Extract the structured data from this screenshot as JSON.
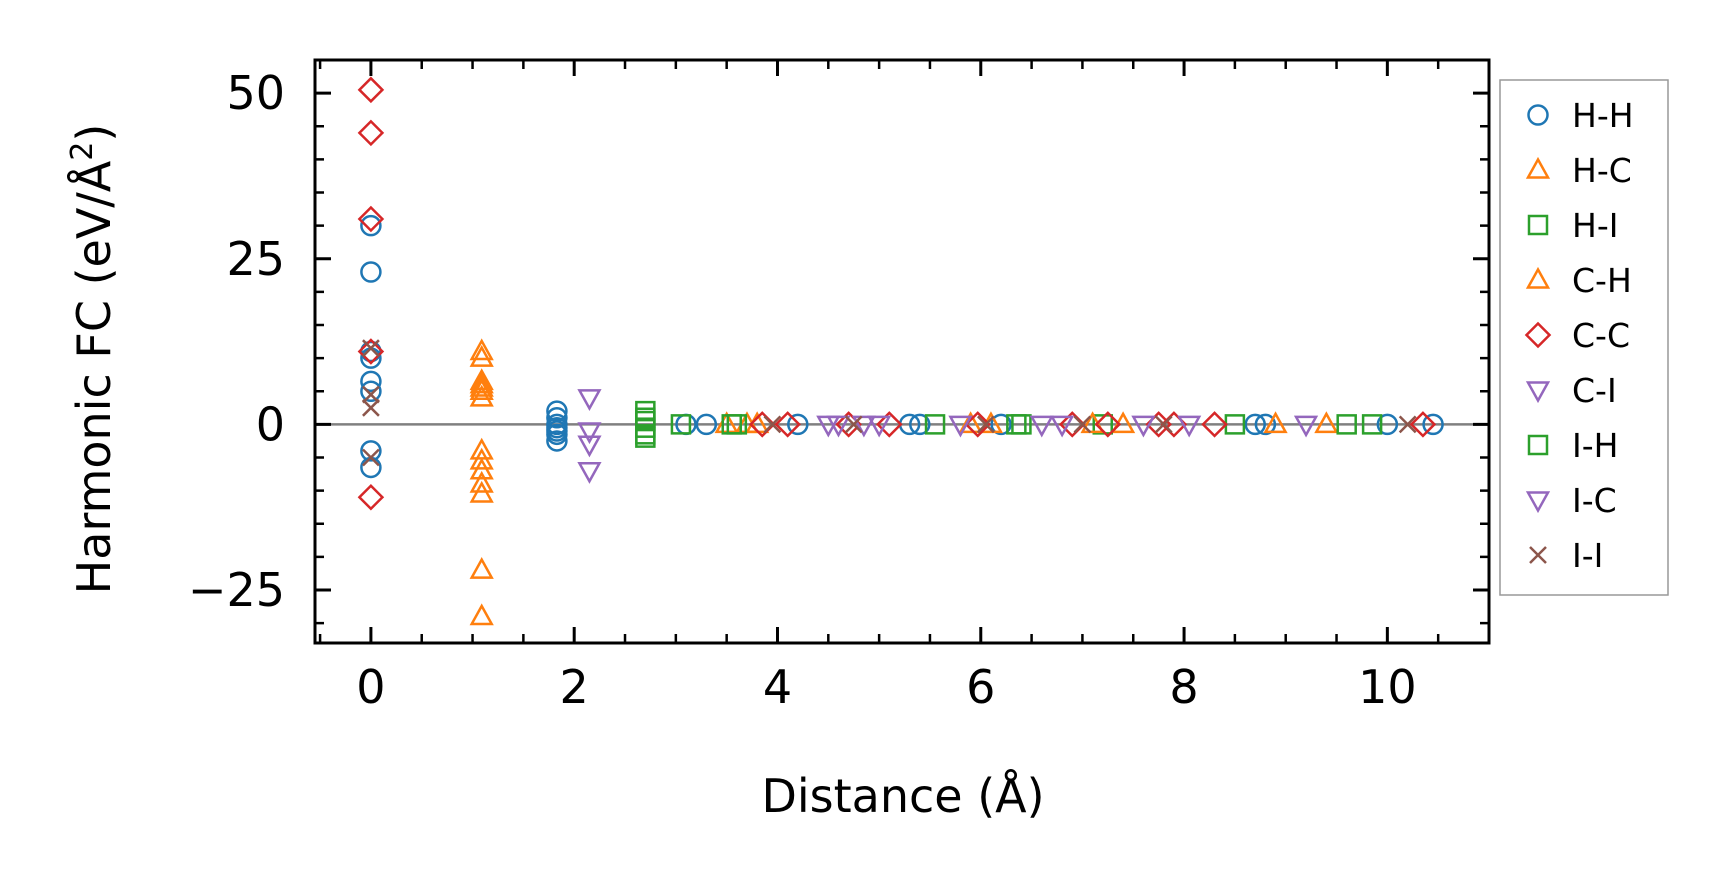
{
  "chart_data": {
    "type": "scatter",
    "title": "",
    "xlabel": "Distance (Å)",
    "ylabel_main": "Harmonic FC (eV/Å",
    "ylabel_sup": "2",
    "ylabel_close": ")",
    "xlim": [
      -0.55,
      11.0
    ],
    "ylim": [
      -33,
      55
    ],
    "xticks": [
      0,
      2,
      4,
      6,
      8,
      10
    ],
    "xtick_labels": [
      "0",
      "2",
      "4",
      "6",
      "8",
      "10"
    ],
    "yticks": [
      -25,
      0,
      25,
      50
    ],
    "ytick_labels": [
      "−25",
      "0",
      "25",
      "50"
    ],
    "zero_line": true,
    "legend_position": "outside-right",
    "series": [
      {
        "name": "H-H",
        "marker": "circle",
        "color": "#1f77b4",
        "x": [
          0,
          0,
          0,
          0,
          0,
          0,
          0,
          0,
          1.83,
          1.83,
          1.83,
          1.83,
          1.83,
          1.83,
          1.83,
          3.1,
          3.3,
          4.2,
          5.3,
          5.4,
          6.2,
          8.7,
          8.8,
          10.0,
          10.45
        ],
        "y": [
          30,
          23,
          11,
          10,
          6.5,
          5,
          -4,
          -6.5,
          2,
          1,
          0,
          -0.5,
          -1,
          -1.5,
          -2.5,
          0,
          0,
          0,
          0,
          0,
          0,
          0,
          0,
          0,
          0
        ]
      },
      {
        "name": "H-C",
        "marker": "triangle-up",
        "color": "#ff7f0e",
        "x": [
          1.09,
          1.09,
          1.09,
          1.09,
          1.09,
          1.09,
          1.09,
          1.09,
          1.09,
          1.09,
          1.09,
          3.5,
          3.7,
          5.9,
          7.4,
          8.9,
          9.4
        ],
        "y": [
          11,
          10,
          6.5,
          5.5,
          4,
          -4,
          -5.5,
          -7,
          -9,
          -10.5,
          -22,
          0,
          0,
          0,
          0,
          0,
          0
        ]
      },
      {
        "name": "H-I",
        "marker": "square",
        "color": "#2ca02c",
        "x": [
          2.7,
          2.7,
          2.7,
          2.7,
          3.05,
          3.55,
          5.55,
          6.35,
          7.2,
          8.5,
          9.6
        ],
        "y": [
          2,
          0.5,
          -0.5,
          -2,
          0,
          0,
          0,
          0,
          0,
          0,
          0
        ]
      },
      {
        "name": "C-H",
        "marker": "triangle-up",
        "color": "#ff7f0e",
        "x": [
          1.09,
          1.09,
          1.09,
          3.8,
          6.1,
          7.1
        ],
        "y": [
          6,
          5,
          -29,
          0,
          0,
          0
        ]
      },
      {
        "name": "C-C",
        "marker": "diamond",
        "color": "#d62728",
        "x": [
          0,
          0,
          0,
          0,
          0,
          3.85,
          4.1,
          4.7,
          5.1,
          5.97,
          6.9,
          7.25,
          7.75,
          7.9,
          8.3,
          10.35
        ],
        "y": [
          50.5,
          44,
          31,
          11,
          -11,
          0,
          0,
          0,
          0,
          0,
          0,
          0,
          0,
          0,
          0,
          0
        ]
      },
      {
        "name": "C-I",
        "marker": "triangle-down",
        "color": "#9467bd",
        "x": [
          2.15,
          2.15,
          2.15,
          2.15,
          4.5,
          5.0,
          6.8,
          7.6,
          9.2
        ],
        "y": [
          4,
          -1,
          -3,
          -7,
          0,
          0,
          0,
          0,
          0
        ]
      },
      {
        "name": "I-H",
        "marker": "square",
        "color": "#2ca02c",
        "x": [
          2.7,
          2.7,
          3.6,
          6.4,
          9.85
        ],
        "y": [
          1,
          -1.5,
          0,
          0,
          0
        ]
      },
      {
        "name": "I-C",
        "marker": "triangle-down",
        "color": "#9467bd",
        "x": [
          4.6,
          4.85,
          5.8,
          6.6,
          8.05
        ],
        "y": [
          0,
          0,
          0,
          0,
          0
        ]
      },
      {
        "name": "I-I",
        "marker": "x",
        "color": "#8c564b",
        "x": [
          0,
          0,
          0,
          0,
          3.95,
          4.75,
          6.05,
          7.0,
          7.8,
          10.2
        ],
        "y": [
          11.5,
          4.5,
          2.5,
          -5,
          0,
          0,
          0,
          0,
          0,
          0
        ]
      }
    ]
  }
}
